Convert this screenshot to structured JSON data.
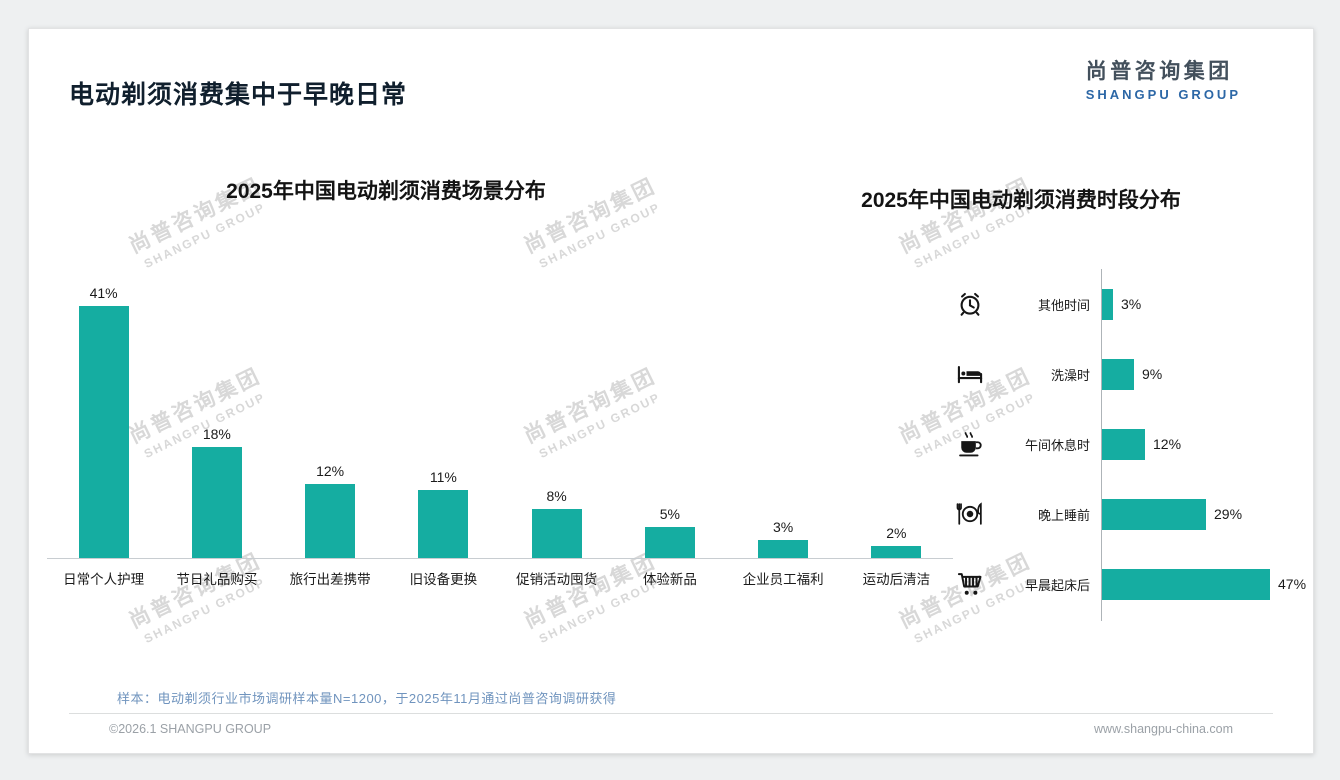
{
  "slide": {
    "title": "电动剃须消费集中于早晚日常",
    "logo": {
      "cn": "尚普咨询集团",
      "en": "SHANGPU GROUP"
    },
    "watermark": {
      "cn": "尚普咨询集团",
      "en": "SHANGPU GROUP"
    },
    "footer": {
      "note": "样本：电动剃须行业市场调研样本量N=1200，于2025年11月通过尚普咨询调研获得",
      "copyright": "©2026.1 SHANGPU GROUP",
      "website": "www.shangpu-china.com"
    },
    "colors": {
      "bar": "#15ADA1",
      "logo_blue": "#2C67A6",
      "note_blue": "#7094BE"
    }
  },
  "chart_data": [
    {
      "type": "bar",
      "orientation": "vertical",
      "title": "2025年中国电动剃须消费场景分布",
      "categories": [
        "日常个人护理",
        "节日礼品购买",
        "旅行出差携带",
        "旧设备更换",
        "促销活动囤货",
        "体验新品",
        "企业员工福利",
        "运动后清洁"
      ],
      "values": [
        41,
        18,
        12,
        11,
        8,
        5,
        3,
        2
      ],
      "unit": "%",
      "ylim": [
        0,
        45
      ],
      "bar_color": "#15ADA1",
      "grid": false,
      "legend": "none"
    },
    {
      "type": "bar",
      "orientation": "horizontal",
      "title": "2025年中国电动剃须消费时段分布",
      "categories": [
        "其他时间",
        "洗澡时",
        "午间休息时",
        "晚上睡前",
        "早晨起床后"
      ],
      "values": [
        3,
        9,
        12,
        29,
        47
      ],
      "icons": [
        "alarm-clock-icon",
        "bed-icon",
        "coffee-cup-icon",
        "dinner-plate-icon",
        "shopping-cart-icon"
      ],
      "unit": "%",
      "xlim": [
        0,
        50
      ],
      "bar_color": "#15ADA1",
      "grid": false,
      "legend": "none"
    }
  ]
}
